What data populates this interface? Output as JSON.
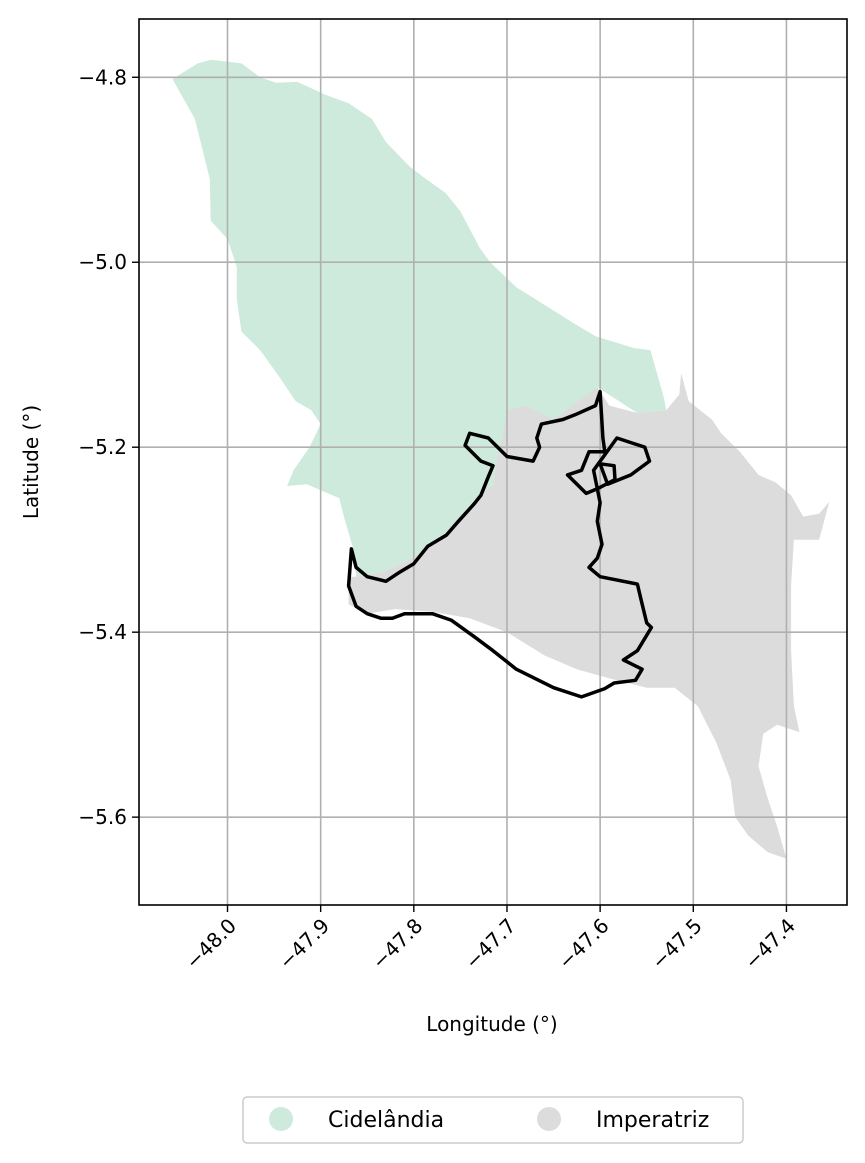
{
  "chart_data": {
    "type": "map",
    "xlabel": "Longitude (°)",
    "ylabel": "Latitude (°)",
    "xlim": [
      -48.095,
      -47.335
    ],
    "ylim": [
      -5.695,
      -4.737
    ],
    "xticks": [
      -48.0,
      -47.9,
      -47.8,
      -47.7,
      -47.6,
      -47.5,
      -47.4
    ],
    "xtick_labels": [
      "−48.0",
      "−47.9",
      "−47.8",
      "−47.7",
      "−47.6",
      "−47.5",
      "−47.4"
    ],
    "yticks": [
      -4.8,
      -5.0,
      -5.2,
      -5.4,
      -5.6
    ],
    "ytick_labels": [
      "−4.8",
      "−5.0",
      "−5.2",
      "−5.4",
      "−5.6"
    ],
    "grid": true,
    "legend_position": "bottom-center",
    "regions": [
      {
        "name": "Cidelândia",
        "color": "#cdeadc",
        "coords": [
          [
            -48.059,
            -4.802
          ],
          [
            -48.032,
            -4.785
          ],
          [
            -48.018,
            -4.781
          ],
          [
            -47.985,
            -4.785
          ],
          [
            -47.965,
            -4.8
          ],
          [
            -47.948,
            -4.806
          ],
          [
            -47.925,
            -4.805
          ],
          [
            -47.895,
            -4.819
          ],
          [
            -47.87,
            -4.828
          ],
          [
            -47.845,
            -4.845
          ],
          [
            -47.83,
            -4.87
          ],
          [
            -47.805,
            -4.896
          ],
          [
            -47.787,
            -4.91
          ],
          [
            -47.766,
            -4.925
          ],
          [
            -47.75,
            -4.945
          ],
          [
            -47.729,
            -4.985
          ],
          [
            -47.718,
            -5.0
          ],
          [
            -47.69,
            -5.027
          ],
          [
            -47.63,
            -5.065
          ],
          [
            -47.605,
            -5.08
          ],
          [
            -47.563,
            -5.093
          ],
          [
            -47.546,
            -5.095
          ],
          [
            -47.532,
            -5.145
          ],
          [
            -47.529,
            -5.16
          ],
          [
            -47.56,
            -5.163
          ],
          [
            -47.58,
            -5.15
          ],
          [
            -47.603,
            -5.135
          ],
          [
            -47.605,
            -5.165
          ],
          [
            -47.6,
            -5.185
          ],
          [
            -47.613,
            -5.19
          ],
          [
            -47.64,
            -5.17
          ],
          [
            -47.667,
            -5.175
          ],
          [
            -47.684,
            -5.163
          ],
          [
            -47.7,
            -5.185
          ],
          [
            -47.711,
            -5.215
          ],
          [
            -47.715,
            -5.24
          ],
          [
            -47.733,
            -5.255
          ],
          [
            -47.75,
            -5.275
          ],
          [
            -47.775,
            -5.302
          ],
          [
            -47.802,
            -5.32
          ],
          [
            -47.833,
            -5.335
          ],
          [
            -47.862,
            -5.34
          ],
          [
            -47.865,
            -5.31
          ],
          [
            -47.875,
            -5.275
          ],
          [
            -47.88,
            -5.255
          ],
          [
            -47.915,
            -5.24
          ],
          [
            -47.936,
            -5.242
          ],
          [
            -47.929,
            -5.225
          ],
          [
            -47.912,
            -5.2
          ],
          [
            -47.9,
            -5.175
          ],
          [
            -47.91,
            -5.16
          ],
          [
            -47.927,
            -5.15
          ],
          [
            -47.945,
            -5.123
          ],
          [
            -47.965,
            -5.095
          ],
          [
            -47.985,
            -5.075
          ],
          [
            -47.99,
            -5.04
          ],
          [
            -47.99,
            -5.005
          ],
          [
            -48.0,
            -4.975
          ],
          [
            -48.018,
            -4.955
          ],
          [
            -48.019,
            -4.91
          ],
          [
            -48.035,
            -4.845
          ]
        ]
      },
      {
        "name": "Imperatriz",
        "color": "#dcdcdc",
        "coords": [
          [
            -47.7,
            -5.16
          ],
          [
            -47.68,
            -5.155
          ],
          [
            -47.65,
            -5.17
          ],
          [
            -47.603,
            -5.135
          ],
          [
            -47.59,
            -5.155
          ],
          [
            -47.56,
            -5.163
          ],
          [
            -47.529,
            -5.16
          ],
          [
            -47.515,
            -5.143
          ],
          [
            -47.513,
            -5.12
          ],
          [
            -47.505,
            -5.15
          ],
          [
            -47.48,
            -5.17
          ],
          [
            -47.47,
            -5.185
          ],
          [
            -47.45,
            -5.205
          ],
          [
            -47.43,
            -5.23
          ],
          [
            -47.412,
            -5.238
          ],
          [
            -47.395,
            -5.252
          ],
          [
            -47.382,
            -5.275
          ],
          [
            -47.365,
            -5.272
          ],
          [
            -47.354,
            -5.259
          ],
          [
            -47.365,
            -5.3
          ],
          [
            -47.392,
            -5.3
          ],
          [
            -47.395,
            -5.35
          ],
          [
            -47.395,
            -5.42
          ],
          [
            -47.392,
            -5.48
          ],
          [
            -47.386,
            -5.508
          ],
          [
            -47.41,
            -5.5
          ],
          [
            -47.425,
            -5.51
          ],
          [
            -47.43,
            -5.545
          ],
          [
            -47.42,
            -5.58
          ],
          [
            -47.41,
            -5.61
          ],
          [
            -47.4,
            -5.645
          ],
          [
            -47.42,
            -5.638
          ],
          [
            -47.441,
            -5.62
          ],
          [
            -47.455,
            -5.6
          ],
          [
            -47.46,
            -5.56
          ],
          [
            -47.475,
            -5.52
          ],
          [
            -47.495,
            -5.48
          ],
          [
            -47.52,
            -5.46
          ],
          [
            -47.55,
            -5.46
          ],
          [
            -47.59,
            -5.45
          ],
          [
            -47.625,
            -5.44
          ],
          [
            -47.66,
            -5.425
          ],
          [
            -47.7,
            -5.4
          ],
          [
            -47.74,
            -5.385
          ],
          [
            -47.78,
            -5.378
          ],
          [
            -47.82,
            -5.375
          ],
          [
            -47.85,
            -5.38
          ],
          [
            -47.87,
            -5.37
          ],
          [
            -47.87,
            -5.34
          ],
          [
            -47.862,
            -5.34
          ],
          [
            -47.833,
            -5.335
          ],
          [
            -47.802,
            -5.32
          ],
          [
            -47.775,
            -5.302
          ],
          [
            -47.75,
            -5.275
          ],
          [
            -47.733,
            -5.255
          ],
          [
            -47.715,
            -5.24
          ],
          [
            -47.711,
            -5.215
          ],
          [
            -47.705,
            -5.19
          ]
        ]
      }
    ],
    "boundary": {
      "color": "#000000",
      "coords": [
        [
          -47.867,
          -5.31
        ],
        [
          -47.862,
          -5.33
        ],
        [
          -47.85,
          -5.34
        ],
        [
          -47.83,
          -5.345
        ],
        [
          -47.815,
          -5.335
        ],
        [
          -47.8,
          -5.326
        ],
        [
          -47.785,
          -5.307
        ],
        [
          -47.765,
          -5.295
        ],
        [
          -47.752,
          -5.28
        ],
        [
          -47.735,
          -5.261
        ],
        [
          -47.728,
          -5.252
        ],
        [
          -47.72,
          -5.232
        ],
        [
          -47.715,
          -5.22
        ],
        [
          -47.728,
          -5.215
        ],
        [
          -47.745,
          -5.198
        ],
        [
          -47.74,
          -5.185
        ],
        [
          -47.72,
          -5.19
        ],
        [
          -47.7,
          -5.21
        ],
        [
          -47.672,
          -5.215
        ],
        [
          -47.665,
          -5.2
        ],
        [
          -47.668,
          -5.19
        ],
        [
          -47.663,
          -5.175
        ],
        [
          -47.64,
          -5.17
        ],
        [
          -47.627,
          -5.165
        ],
        [
          -47.605,
          -5.155
        ],
        [
          -47.6,
          -5.14
        ],
        [
          -47.597,
          -5.19
        ],
        [
          -47.595,
          -5.205
        ],
        [
          -47.612,
          -5.205
        ],
        [
          -47.62,
          -5.225
        ],
        [
          -47.635,
          -5.23
        ],
        [
          -47.615,
          -5.25
        ],
        [
          -47.603,
          -5.245
        ],
        [
          -47.584,
          -5.235
        ],
        [
          -47.585,
          -5.22
        ],
        [
          -47.6,
          -5.218
        ],
        [
          -47.592,
          -5.24
        ],
        [
          -47.567,
          -5.23
        ],
        [
          -47.547,
          -5.215
        ],
        [
          -47.552,
          -5.2
        ],
        [
          -47.582,
          -5.19
        ],
        [
          -47.607,
          -5.225
        ],
        [
          -47.6,
          -5.26
        ],
        [
          -47.603,
          -5.28
        ],
        [
          -47.598,
          -5.305
        ],
        [
          -47.603,
          -5.32
        ],
        [
          -47.612,
          -5.33
        ],
        [
          -47.6,
          -5.34
        ],
        [
          -47.56,
          -5.348
        ],
        [
          -47.556,
          -5.365
        ],
        [
          -47.55,
          -5.39
        ],
        [
          -47.545,
          -5.395
        ],
        [
          -47.56,
          -5.42
        ],
        [
          -47.575,
          -5.43
        ],
        [
          -47.555,
          -5.44
        ],
        [
          -47.562,
          -5.452
        ],
        [
          -47.585,
          -5.455
        ],
        [
          -47.595,
          -5.461
        ],
        [
          -47.62,
          -5.47
        ],
        [
          -47.65,
          -5.46
        ],
        [
          -47.69,
          -5.44
        ],
        [
          -47.715,
          -5.42
        ],
        [
          -47.735,
          -5.405
        ],
        [
          -47.76,
          -5.387
        ],
        [
          -47.78,
          -5.38
        ],
        [
          -47.8,
          -5.38
        ],
        [
          -47.81,
          -5.38
        ],
        [
          -47.823,
          -5.385
        ],
        [
          -47.835,
          -5.385
        ],
        [
          -47.85,
          -5.38
        ],
        [
          -47.862,
          -5.372
        ],
        [
          -47.87,
          -5.35
        ],
        [
          -47.867,
          -5.31
        ]
      ]
    }
  },
  "legend": {
    "items": [
      {
        "label": "Cidelândia",
        "color": "#cdeadc"
      },
      {
        "label": "Imperatriz",
        "color": "#dcdcdc"
      }
    ]
  }
}
